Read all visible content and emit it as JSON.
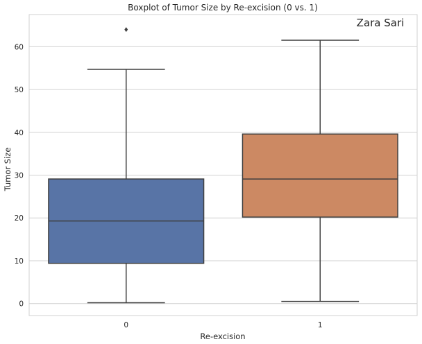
{
  "chart_data": {
    "type": "box",
    "title": "Boxplot of Tumor Size by Re-excision (0 vs. 1)",
    "xlabel": "Re-excision",
    "ylabel": "Tumor Size",
    "ylim": [
      -2.8,
      67.5
    ],
    "yticks": [
      0,
      10,
      20,
      30,
      40,
      50,
      60
    ],
    "grid": true,
    "categories": [
      "0",
      "1"
    ],
    "boxes": [
      {
        "category": "0",
        "whislo": 0.2,
        "q1": 9.4,
        "med": 19.3,
        "q3": 29.1,
        "whishi": 54.7,
        "fliers": [
          64.0
        ],
        "color": "#5874a6"
      },
      {
        "category": "1",
        "whislo": 0.5,
        "q1": 20.2,
        "med": 29.1,
        "q3": 39.6,
        "whishi": 61.5,
        "fliers": [],
        "color": "#cc8963"
      }
    ],
    "annotation": "Zara Sari"
  },
  "colors": {
    "grid": "#d0d0d0",
    "frame": "#d0d0d0",
    "lines": "#3f3f3f"
  }
}
